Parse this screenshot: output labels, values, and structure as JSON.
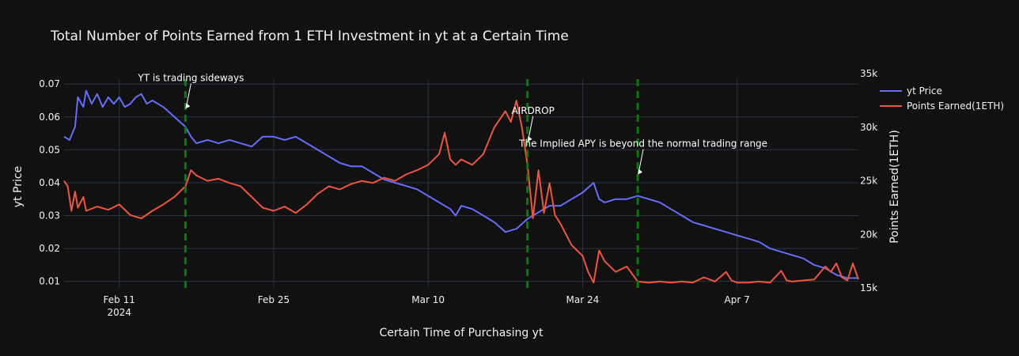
{
  "chart_data": {
    "type": "line",
    "title": "Total Number of Points Earned from 1 ETH Investment in yt at a Certain Time",
    "xlabel": "Certain Time of Purchasing yt",
    "ylabel": "yt Price",
    "y2label": "Points Earned(1ETH)",
    "xlim": [
      "2024-02-06",
      "2024-04-18"
    ],
    "ylim": [
      0.008,
      0.0715
    ],
    "y2lim": [
      15000,
      34500
    ],
    "x_ticks": [
      {
        "date": "2024-02-11",
        "label": "Feb 11",
        "sublabel": "2024"
      },
      {
        "date": "2024-02-25",
        "label": "Feb 25",
        "sublabel": ""
      },
      {
        "date": "2024-03-10",
        "label": "Mar 10",
        "sublabel": ""
      },
      {
        "date": "2024-03-24",
        "label": "Mar 24",
        "sublabel": ""
      },
      {
        "date": "2024-04-07",
        "label": "Apr 7",
        "sublabel": ""
      }
    ],
    "y_ticks": [
      {
        "value": 0.01,
        "label": "0.01"
      },
      {
        "value": 0.02,
        "label": "0.02"
      },
      {
        "value": 0.03,
        "label": "0.03"
      },
      {
        "value": 0.04,
        "label": "0.04"
      },
      {
        "value": 0.05,
        "label": "0.05"
      },
      {
        "value": 0.06,
        "label": "0.06"
      },
      {
        "value": 0.07,
        "label": "0.07"
      }
    ],
    "y2_ticks": [
      {
        "value": 15000,
        "label": "15k"
      },
      {
        "value": 20000,
        "label": "20k"
      },
      {
        "value": 25000,
        "label": "25k"
      },
      {
        "value": 30000,
        "label": "30k"
      },
      {
        "value": 35000,
        "label": "35k"
      }
    ],
    "grid": true,
    "legend_position": "top-right",
    "series": [
      {
        "name": "yt Price",
        "axis": "y",
        "color": "#636efa",
        "points": [
          [
            "2024-02-06",
            0.054
          ],
          [
            "2024-02-06T12:00",
            0.053
          ],
          [
            "2024-02-07",
            0.057
          ],
          [
            "2024-02-07T06:00",
            0.066
          ],
          [
            "2024-02-07T18:00",
            0.063
          ],
          [
            "2024-02-08",
            0.068
          ],
          [
            "2024-02-08T12:00",
            0.064
          ],
          [
            "2024-02-09",
            0.067
          ],
          [
            "2024-02-09T12:00",
            0.063
          ],
          [
            "2024-02-10",
            0.066
          ],
          [
            "2024-02-10T12:00",
            0.064
          ],
          [
            "2024-02-11",
            0.066
          ],
          [
            "2024-02-11T12:00",
            0.063
          ],
          [
            "2024-02-12",
            0.064
          ],
          [
            "2024-02-12T12:00",
            0.066
          ],
          [
            "2024-02-13",
            0.067
          ],
          [
            "2024-02-13T12:00",
            0.064
          ],
          [
            "2024-02-14",
            0.065
          ],
          [
            "2024-02-15",
            0.063
          ],
          [
            "2024-02-16",
            0.06
          ],
          [
            "2024-02-17",
            0.057
          ],
          [
            "2024-02-17T12:00",
            0.054
          ],
          [
            "2024-02-18",
            0.052
          ],
          [
            "2024-02-19",
            0.053
          ],
          [
            "2024-02-20",
            0.052
          ],
          [
            "2024-02-21",
            0.053
          ],
          [
            "2024-02-22",
            0.052
          ],
          [
            "2024-02-23",
            0.051
          ],
          [
            "2024-02-24",
            0.054
          ],
          [
            "2024-02-25",
            0.054
          ],
          [
            "2024-02-26",
            0.053
          ],
          [
            "2024-02-27",
            0.054
          ],
          [
            "2024-02-28",
            0.052
          ],
          [
            "2024-02-29",
            0.05
          ],
          [
            "2024-03-01",
            0.048
          ],
          [
            "2024-03-02",
            0.046
          ],
          [
            "2024-03-03",
            0.045
          ],
          [
            "2024-03-04",
            0.045
          ],
          [
            "2024-03-05",
            0.043
          ],
          [
            "2024-03-06",
            0.041
          ],
          [
            "2024-03-07",
            0.04
          ],
          [
            "2024-03-08",
            0.039
          ],
          [
            "2024-03-09",
            0.038
          ],
          [
            "2024-03-10",
            0.036
          ],
          [
            "2024-03-11",
            0.034
          ],
          [
            "2024-03-12",
            0.032
          ],
          [
            "2024-03-12T12:00",
            0.03
          ],
          [
            "2024-03-13",
            0.033
          ],
          [
            "2024-03-14",
            0.032
          ],
          [
            "2024-03-15",
            0.03
          ],
          [
            "2024-03-16",
            0.028
          ],
          [
            "2024-03-17",
            0.025
          ],
          [
            "2024-03-18",
            0.026
          ],
          [
            "2024-03-19",
            0.029
          ],
          [
            "2024-03-20",
            0.031
          ],
          [
            "2024-03-21",
            0.033
          ],
          [
            "2024-03-22",
            0.033
          ],
          [
            "2024-03-23",
            0.035
          ],
          [
            "2024-03-24",
            0.037
          ],
          [
            "2024-03-25",
            0.04
          ],
          [
            "2024-03-25T12:00",
            0.035
          ],
          [
            "2024-03-26",
            0.034
          ],
          [
            "2024-03-27",
            0.035
          ],
          [
            "2024-03-28",
            0.035
          ],
          [
            "2024-03-29",
            0.036
          ],
          [
            "2024-03-30",
            0.035
          ],
          [
            "2024-03-31",
            0.034
          ],
          [
            "2024-04-01",
            0.032
          ],
          [
            "2024-04-02",
            0.03
          ],
          [
            "2024-04-03",
            0.028
          ],
          [
            "2024-04-04",
            0.027
          ],
          [
            "2024-04-05",
            0.026
          ],
          [
            "2024-04-06",
            0.025
          ],
          [
            "2024-04-07",
            0.024
          ],
          [
            "2024-04-08",
            0.023
          ],
          [
            "2024-04-09",
            0.022
          ],
          [
            "2024-04-10",
            0.02
          ],
          [
            "2024-04-11",
            0.019
          ],
          [
            "2024-04-12",
            0.018
          ],
          [
            "2024-04-13",
            0.017
          ],
          [
            "2024-04-14",
            0.015
          ],
          [
            "2024-04-15",
            0.014
          ],
          [
            "2024-04-16",
            0.012
          ],
          [
            "2024-04-17",
            0.011
          ],
          [
            "2024-04-18",
            0.011
          ]
        ]
      },
      {
        "name": "Points Earned(1ETH)",
        "axis": "y2",
        "color": "#ef553b",
        "points": [
          [
            "2024-02-06",
            25000
          ],
          [
            "2024-02-06T08:00",
            24500
          ],
          [
            "2024-02-06T16:00",
            22200
          ],
          [
            "2024-02-07",
            24000
          ],
          [
            "2024-02-07T06:00",
            22500
          ],
          [
            "2024-02-07T18:00",
            23500
          ],
          [
            "2024-02-08",
            22200
          ],
          [
            "2024-02-09",
            22600
          ],
          [
            "2024-02-10",
            22300
          ],
          [
            "2024-02-11",
            22800
          ],
          [
            "2024-02-12",
            21800
          ],
          [
            "2024-02-13",
            21500
          ],
          [
            "2024-02-14",
            22200
          ],
          [
            "2024-02-15",
            22800
          ],
          [
            "2024-02-16",
            23500
          ],
          [
            "2024-02-17",
            24500
          ],
          [
            "2024-02-17T12:00",
            26000
          ],
          [
            "2024-02-18",
            25500
          ],
          [
            "2024-02-19",
            25000
          ],
          [
            "2024-02-20",
            25200
          ],
          [
            "2024-02-21",
            24800
          ],
          [
            "2024-02-22",
            24500
          ],
          [
            "2024-02-23",
            23500
          ],
          [
            "2024-02-24",
            22500
          ],
          [
            "2024-02-25",
            22200
          ],
          [
            "2024-02-26",
            22600
          ],
          [
            "2024-02-27",
            22000
          ],
          [
            "2024-02-28",
            22800
          ],
          [
            "2024-02-29",
            23800
          ],
          [
            "2024-03-01",
            24500
          ],
          [
            "2024-03-02",
            24200
          ],
          [
            "2024-03-03",
            24700
          ],
          [
            "2024-03-04",
            25000
          ],
          [
            "2024-03-05",
            24800
          ],
          [
            "2024-03-06",
            25300
          ],
          [
            "2024-03-07",
            25000
          ],
          [
            "2024-03-08",
            25600
          ],
          [
            "2024-03-09",
            26000
          ],
          [
            "2024-03-10",
            26500
          ],
          [
            "2024-03-11",
            27500
          ],
          [
            "2024-03-11T12:00",
            29500
          ],
          [
            "2024-03-12",
            27000
          ],
          [
            "2024-03-12T12:00",
            26500
          ],
          [
            "2024-03-13",
            27000
          ],
          [
            "2024-03-14",
            26500
          ],
          [
            "2024-03-15",
            27500
          ],
          [
            "2024-03-16",
            30000
          ],
          [
            "2024-03-17",
            31500
          ],
          [
            "2024-03-17T12:00",
            30500
          ],
          [
            "2024-03-18",
            32500
          ],
          [
            "2024-03-18T12:00",
            30000
          ],
          [
            "2024-03-19",
            26500
          ],
          [
            "2024-03-19T12:00",
            21500
          ],
          [
            "2024-03-20",
            26000
          ],
          [
            "2024-03-20T12:00",
            22000
          ],
          [
            "2024-03-21",
            24800
          ],
          [
            "2024-03-21T12:00",
            21800
          ],
          [
            "2024-03-22",
            21000
          ],
          [
            "2024-03-23",
            19000
          ],
          [
            "2024-03-24",
            18000
          ],
          [
            "2024-03-24T12:00",
            16500
          ],
          [
            "2024-03-25",
            15500
          ],
          [
            "2024-03-25T12:00",
            18500
          ],
          [
            "2024-03-26",
            17500
          ],
          [
            "2024-03-27",
            16500
          ],
          [
            "2024-03-28",
            17000
          ],
          [
            "2024-03-29",
            15600
          ],
          [
            "2024-03-30",
            15500
          ],
          [
            "2024-03-31",
            15600
          ],
          [
            "2024-04-01",
            15500
          ],
          [
            "2024-04-02",
            15600
          ],
          [
            "2024-04-03",
            15500
          ],
          [
            "2024-04-04",
            16000
          ],
          [
            "2024-04-05",
            15600
          ],
          [
            "2024-04-06",
            16500
          ],
          [
            "2024-04-06T12:00",
            15700
          ],
          [
            "2024-04-07",
            15500
          ],
          [
            "2024-04-08",
            15500
          ],
          [
            "2024-04-09",
            15600
          ],
          [
            "2024-04-10",
            15500
          ],
          [
            "2024-04-11",
            16600
          ],
          [
            "2024-04-11T12:00",
            15700
          ],
          [
            "2024-04-12",
            15600
          ],
          [
            "2024-04-13",
            15700
          ],
          [
            "2024-04-14",
            15800
          ],
          [
            "2024-04-15",
            17000
          ],
          [
            "2024-04-15T12:00",
            16500
          ],
          [
            "2024-04-16",
            17300
          ],
          [
            "2024-04-16T12:00",
            16000
          ],
          [
            "2024-04-17",
            15700
          ],
          [
            "2024-04-17T12:00",
            17300
          ],
          [
            "2024-04-18",
            15800
          ]
        ]
      }
    ],
    "vlines": [
      {
        "date": "2024-02-17",
        "color": "#008000"
      },
      {
        "date": "2024-03-19",
        "color": "#008000"
      },
      {
        "date": "2024-03-29",
        "color": "#008000"
      }
    ],
    "annotations": [
      {
        "text": "YT is trading sideways",
        "date": "2024-02-17",
        "value": 0.0625
      },
      {
        "text": "AIRDROP",
        "date": "2024-03-19",
        "value": 0.0525
      },
      {
        "text": "The Implied APY is beyond the normal trading range",
        "date": "2024-03-29",
        "value": 0.0425
      }
    ]
  }
}
